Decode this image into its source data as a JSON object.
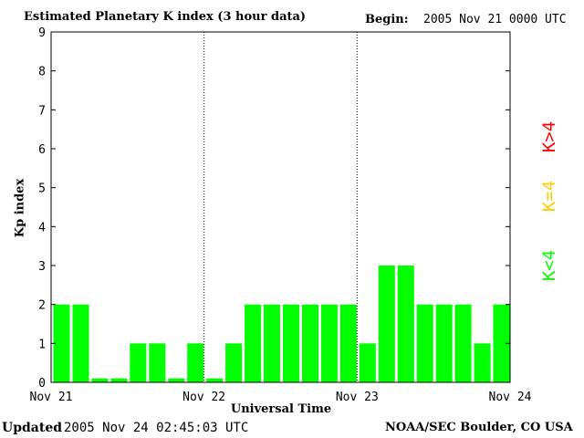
{
  "title": "Estimated Planetary K index (3 hour data)",
  "begin": {
    "label": "Begin:",
    "value": "2005 Nov 21 0000 UTC"
  },
  "footer": {
    "updated_label": "Updated",
    "updated_value": "2005 Nov 24 02:45:03 UTC",
    "source": "NOAA/SEC Boulder, CO USA"
  },
  "legend": [
    {
      "label": "K<4",
      "color": "#00ff00"
    },
    {
      "label": "K=4",
      "color": "#ffcc00"
    },
    {
      "label": "K>4",
      "color": "#ff0000"
    }
  ],
  "chart_data": {
    "type": "bar",
    "title": "Estimated Planetary K index (3 hour data)",
    "xlabel": "Universal Time",
    "ylabel": "Kp index",
    "ylim": [
      0,
      9
    ],
    "yticks": [
      0,
      1,
      2,
      3,
      4,
      5,
      6,
      7,
      8,
      9
    ],
    "xtick_labels": [
      "Nov 21",
      "Nov 22",
      "Nov 23",
      "Nov 24"
    ],
    "day_separators": [
      "Nov 22",
      "Nov 23"
    ],
    "grid": false,
    "bar_color": "#00ff00",
    "series": [
      {
        "values": [
          2,
          2,
          0.1,
          0.1,
          1,
          1,
          0.1,
          1,
          0.1,
          1,
          2,
          2,
          2,
          2,
          2,
          2,
          1,
          3,
          3,
          2,
          2,
          2,
          1,
          2
        ]
      }
    ]
  }
}
